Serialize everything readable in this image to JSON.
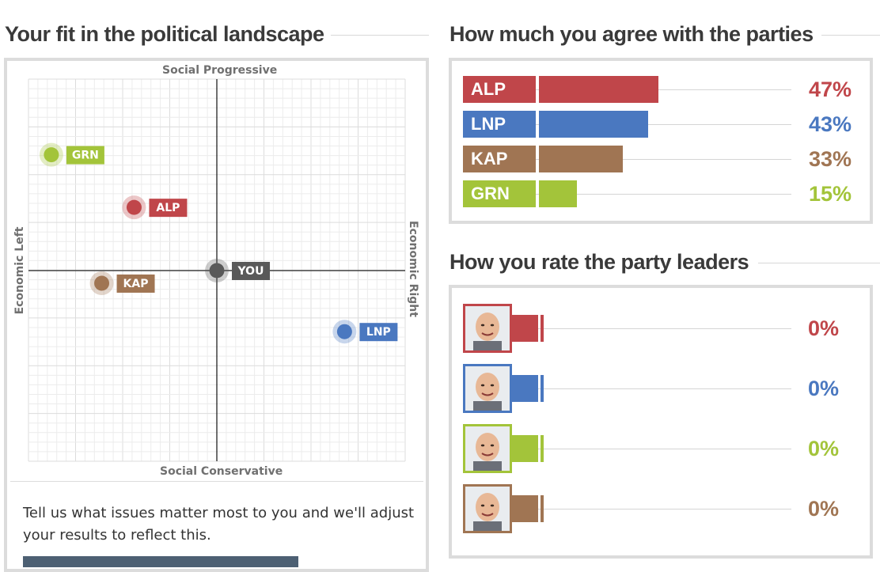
{
  "landscape": {
    "title": "Your fit in the political landscape",
    "axes": {
      "top": "Social Progressive",
      "bottom": "Social Conservative",
      "left": "Economic Left",
      "right": "Economic Right"
    },
    "issues_text": "Tell us what issues matter most to you and we'll adjust your results to reflect this."
  },
  "agreement": {
    "title": "How much you agree with the parties"
  },
  "leaders": {
    "title": "How you rate the party leaders",
    "rows": [
      {
        "party": "ALP",
        "value": 0,
        "label": "0%",
        "color": "#c0464a"
      },
      {
        "party": "LNP",
        "value": 0,
        "label": "0%",
        "color": "#4a78c0"
      },
      {
        "party": "GRN",
        "value": 0,
        "label": "0%",
        "color": "#a3c43a"
      },
      {
        "party": "KAP",
        "value": 0,
        "label": "0%",
        "color": "#a07553"
      }
    ]
  },
  "chart_data": [
    {
      "type": "scatter",
      "title": "Your fit in the political landscape",
      "xlabel_left": "Economic Left",
      "xlabel_right": "Economic Right",
      "ylabel_top": "Social Progressive",
      "ylabel_bottom": "Social Conservative",
      "xlim": [
        -1,
        1
      ],
      "ylim": [
        -1,
        1
      ],
      "grid": true,
      "points": [
        {
          "label": "GRN",
          "x": -0.92,
          "y": 0.55,
          "color": "#a3c43a"
        },
        {
          "label": "ALP",
          "x": -0.46,
          "y": 0.3,
          "color": "#c0464a"
        },
        {
          "label": "YOU",
          "x": 0.0,
          "y": 0.0,
          "color": "#595959"
        },
        {
          "label": "KAP",
          "x": -0.64,
          "y": -0.06,
          "color": "#a07553"
        },
        {
          "label": "LNP",
          "x": 0.71,
          "y": -0.29,
          "color": "#4a78c0"
        }
      ]
    },
    {
      "type": "bar",
      "orientation": "horizontal",
      "title": "How much you agree with the parties",
      "categories": [
        "ALP",
        "LNP",
        "KAP",
        "GRN"
      ],
      "values": [
        47,
        43,
        33,
        15
      ],
      "value_labels": [
        "47%",
        "43%",
        "33%",
        "15%"
      ],
      "colors": [
        "#c0464a",
        "#4a78c0",
        "#a07553",
        "#a3c43a"
      ],
      "xlim": [
        0,
        100
      ]
    }
  ]
}
